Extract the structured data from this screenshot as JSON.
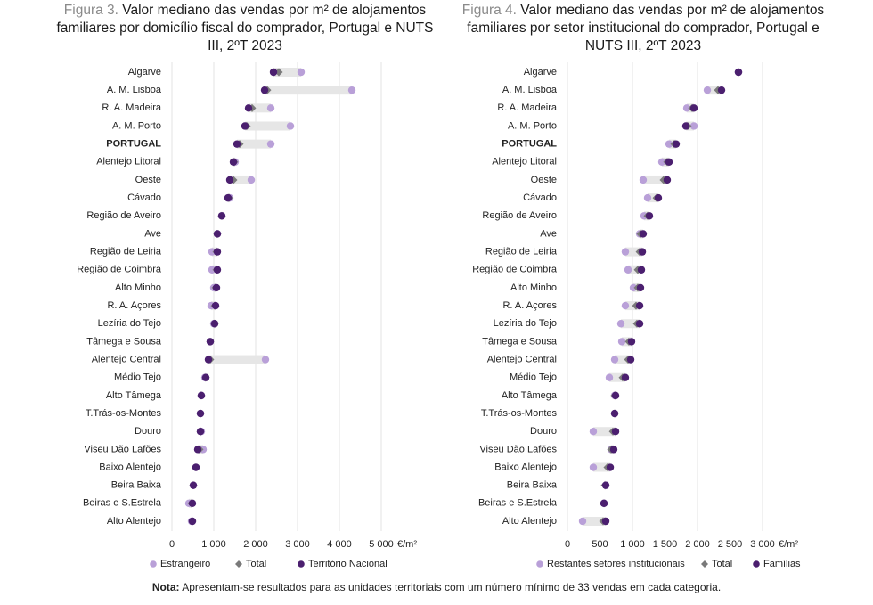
{
  "chart_data": [
    {
      "type": "dot",
      "figure_label": "Figura 3.",
      "title": "Valor mediano das vendas por m² de alojamentos familiares por domicílio fiscal do comprador, Portugal e NUTS III, 2ºT 2023",
      "categories": [
        "Algarve",
        "A. M. Lisboa",
        "R. A. Madeira",
        "A. M. Porto",
        "PORTUGAL",
        "Alentejo Litoral",
        "Oeste",
        "Cávado",
        "Região de Aveiro",
        "Ave",
        "Região de Leiria",
        "Região de Coimbra",
        "Alto Minho",
        "R. A. Açores",
        "Lezíria do Tejo",
        "Tâmega e Sousa",
        "Alentejo Central",
        "Médio Tejo",
        "Alto Tâmega",
        "T.Trás-os-Montes",
        "Douro",
        "Viseu Dão Lafões",
        "Baixo Alentejo",
        "Beira Baixa",
        "Beiras e S.Estrela",
        "Alto Alentejo"
      ],
      "emphasis": "PORTUGAL",
      "series": [
        {
          "name": "Estrangeiro",
          "color": "#b9a0d8",
          "marker": "circle",
          "values": [
            3085,
            4298,
            2362,
            2830,
            2362,
            1511,
            1894,
            1383,
            1191,
            1085,
            957,
            957,
            1000,
            936,
            1000,
            915,
            2234,
            787,
            702,
            681,
            702,
            745,
            574,
            511,
            404,
            468
          ]
        },
        {
          "name": "Total",
          "color": "#7a7a7a",
          "marker": "diamond",
          "values": [
            2553,
            2277,
            1915,
            1787,
            1617,
            1489,
            1468,
            1362,
            1191,
            1085,
            1064,
            1064,
            1043,
            1021,
            1021,
            915,
            915,
            809,
            702,
            681,
            681,
            660,
            574,
            511,
            468,
            489
          ]
        },
        {
          "name": "Território Nacional",
          "color": "#4b1f6f",
          "marker": "circle",
          "values": [
            2426,
            2213,
            1830,
            1745,
            1553,
            1468,
            1383,
            1340,
            1191,
            1085,
            1085,
            1085,
            1064,
            1043,
            1021,
            915,
            872,
            809,
            702,
            681,
            681,
            617,
            574,
            511,
            489,
            489
          ]
        }
      ],
      "xlim": [
        0,
        5000
      ],
      "xticks": [
        0,
        {
          "value": 1000,
          "label": "1 000"
        },
        {
          "value": 2000,
          "label": "2 000"
        },
        {
          "value": 3000,
          "label": "3 000"
        },
        {
          "value": 4000,
          "label": "4 000"
        },
        {
          "value": 5000,
          "label": "5 000"
        }
      ],
      "x_unit": "€/m²",
      "grid": true
    },
    {
      "type": "dot",
      "figure_label": "Figura 4.",
      "title": "Valor mediano das vendas por m² de alojamentos familiares por setor institucional do comprador, Portugal e NUTS III, 2ºT 2023",
      "categories": [
        "Algarve",
        "A. M. Lisboa",
        "R. A. Madeira",
        "A. M. Porto",
        "PORTUGAL",
        "Alentejo Litoral",
        "Oeste",
        "Cávado",
        "Região de Aveiro",
        "Ave",
        "Região de Leiria",
        "Região de Coimbra",
        "Alto Minho",
        "R. A. Açores",
        "Lezíria do Tejo",
        "Tâmega e Sousa",
        "Alentejo Central",
        "Médio Tejo",
        "Alto Tâmega",
        "T.Trás-os-Montes",
        "Douro",
        "Viseu Dão Lafões",
        "Baixo Alentejo",
        "Beira Baixa",
        "Beiras e S.Estrela",
        "Alto Alentejo"
      ],
      "emphasis": "PORTUGAL",
      "series": [
        {
          "name": "Restantes setores institucionais",
          "color": "#b9a0d8",
          "marker": "circle",
          "values": [
            2630,
            2151,
            1836,
            1945,
            1562,
            1452,
            1164,
            1233,
            1178,
            1110,
            890,
            932,
            1014,
            890,
            822,
            836,
            726,
            644,
            726,
            726,
            397,
            671,
            397,
            589,
            562,
            233
          ]
        },
        {
          "name": "Total",
          "color": "#7a7a7a",
          "marker": "diamond",
          "values": [
            2630,
            2315,
            1918,
            1849,
            1644,
            1534,
            1479,
            1370,
            1233,
            1123,
            1110,
            1082,
            1082,
            1055,
            1068,
            945,
            932,
            849,
            726,
            726,
            699,
            671,
            616,
            575,
            562,
            548
          ]
        },
        {
          "name": "Famílias",
          "color": "#4b1f6f",
          "marker": "circle",
          "values": [
            2630,
            2370,
            1945,
            1822,
            1671,
            1562,
            1534,
            1397,
            1260,
            1164,
            1151,
            1137,
            1123,
            1110,
            1110,
            986,
            973,
            890,
            740,
            726,
            740,
            712,
            658,
            589,
            562,
            589
          ]
        }
      ],
      "xlim": [
        0,
        3000
      ],
      "xticks": [
        0,
        500,
        {
          "value": 1000,
          "label": "1 000"
        },
        {
          "value": 1500,
          "label": "1 500"
        },
        {
          "value": 2000,
          "label": "2 000"
        },
        {
          "value": 2500,
          "label": "2 500"
        },
        {
          "value": 3000,
          "label": "3 000"
        }
      ],
      "x_unit": "€/m²",
      "grid": true
    }
  ],
  "note_label": "Nota:",
  "note": "Apresentam-se resultados para as unidades territoriais com um número mínimo de 33 vendas em cada categoria."
}
